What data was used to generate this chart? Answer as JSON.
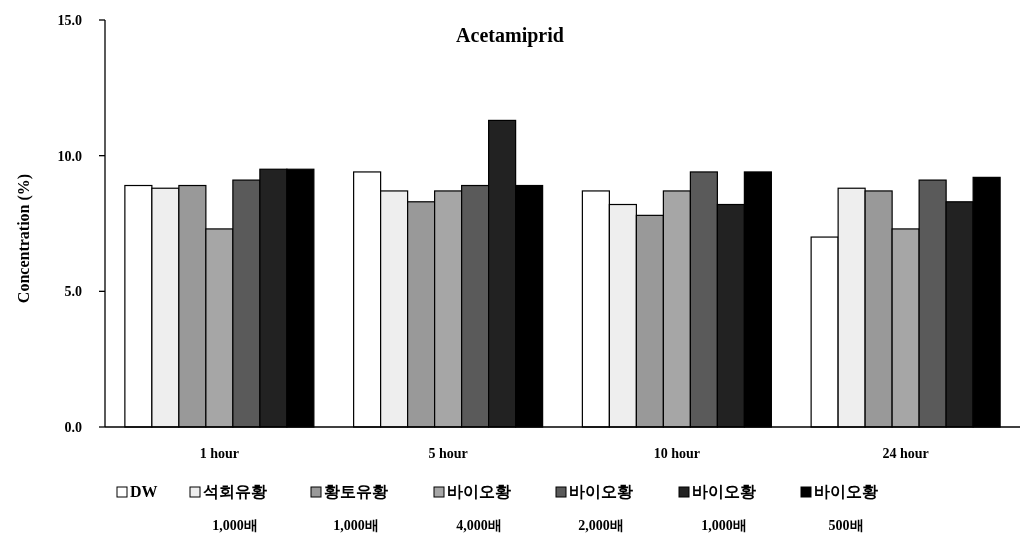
{
  "chart_data": {
    "type": "bar",
    "title": "Acetamiprid",
    "ylabel": "Concentration  (%)",
    "categories": [
      "1 hour",
      "5 hour",
      "10 hour",
      "24 hour"
    ],
    "ylim": [
      0,
      15
    ],
    "yticks": [
      {
        "value": 0,
        "label": "0.0"
      },
      {
        "value": 5,
        "label": "5.0"
      },
      {
        "value": 10,
        "label": "10.0"
      },
      {
        "value": 15,
        "label": "15.0"
      }
    ],
    "legend": "bottom",
    "series": [
      {
        "name": "DW",
        "color": "#ffffff",
        "values": [
          8.9,
          9.4,
          8.7,
          7.0
        ]
      },
      {
        "name": "석회유황 1,000배",
        "color": "#eeeeee",
        "values": [
          8.8,
          8.7,
          8.2,
          8.8
        ]
      },
      {
        "name": "황토유황 1,000배",
        "color": "#999999",
        "values": [
          8.9,
          8.3,
          7.8,
          8.7
        ]
      },
      {
        "name": "바이오황 4,000배",
        "color": "#a6a6a6",
        "values": [
          7.3,
          8.7,
          8.7,
          7.3
        ]
      },
      {
        "name": "바이오황 2,000배",
        "color": "#5a5a5a",
        "values": [
          9.1,
          8.9,
          9.4,
          9.1
        ]
      },
      {
        "name": "바이오황 1,000배",
        "color": "#222222",
        "values": [
          9.5,
          11.3,
          8.2,
          8.3
        ]
      },
      {
        "name": "바이오황 500배",
        "color": "#000000",
        "values": [
          9.5,
          8.9,
          9.4,
          9.2
        ]
      }
    ]
  }
}
